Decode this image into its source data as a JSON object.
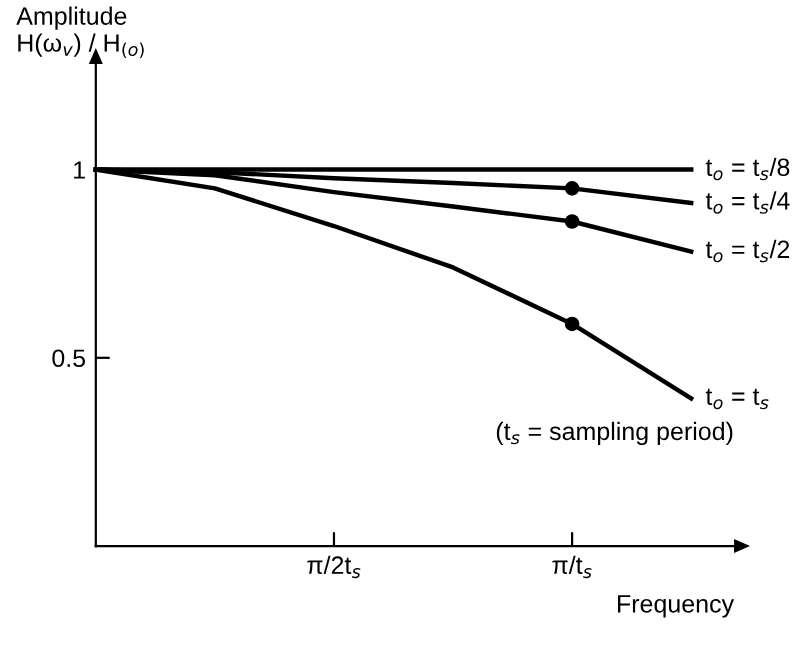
{
  "chart_data": {
    "type": "line",
    "xlabel": "Frequency",
    "ylabel": "Amplitude\nH(ω$_{v}$) / H$_{(o)}$",
    "categories": [
      null,
      null,
      "π/2t$_{s}$",
      null,
      "π/t$_{s}$",
      null
    ],
    "ylim": [
      0,
      1.28
    ],
    "yticks": [
      0.5,
      1
    ],
    "grid": false,
    "legend": false,
    "series": [
      {
        "name": "t$_{o}$ = t$_{s}$/8",
        "color": "#000000",
        "values": [
          1,
          1,
          1,
          1,
          1,
          1
        ]
      },
      {
        "name": "t$_{o}$ = t$_{s}$/4",
        "color": "#000000",
        "values": [
          1,
          0.993,
          0.977,
          0.964,
          0.95,
          0.911
        ]
      },
      {
        "name": "t$_{o}$ = t$_{s}$/2",
        "color": "#000000",
        "values": [
          1,
          0.985,
          0.94,
          0.902,
          0.862,
          0.782
        ]
      },
      {
        "name": "t$_{o}$ = t$_{s}$",
        "color": "#000000",
        "values": [
          1,
          0.95,
          0.85,
          0.74,
          0.59,
          0.392
        ]
      },
      {
        "type": "scatter",
        "color": "#000000",
        "values": [
          null,
          null,
          null,
          null,
          0.95,
          null
        ]
      },
      {
        "type": "scatter",
        "color": "#000000",
        "values": [
          null,
          null,
          null,
          null,
          0.862,
          null
        ]
      },
      {
        "type": "scatter",
        "color": "#000000",
        "values": [
          null,
          null,
          null,
          null,
          0.59,
          null
        ]
      }
    ],
    "annotations": [
      "(t$_{s}$ = sampling period)"
    ]
  }
}
